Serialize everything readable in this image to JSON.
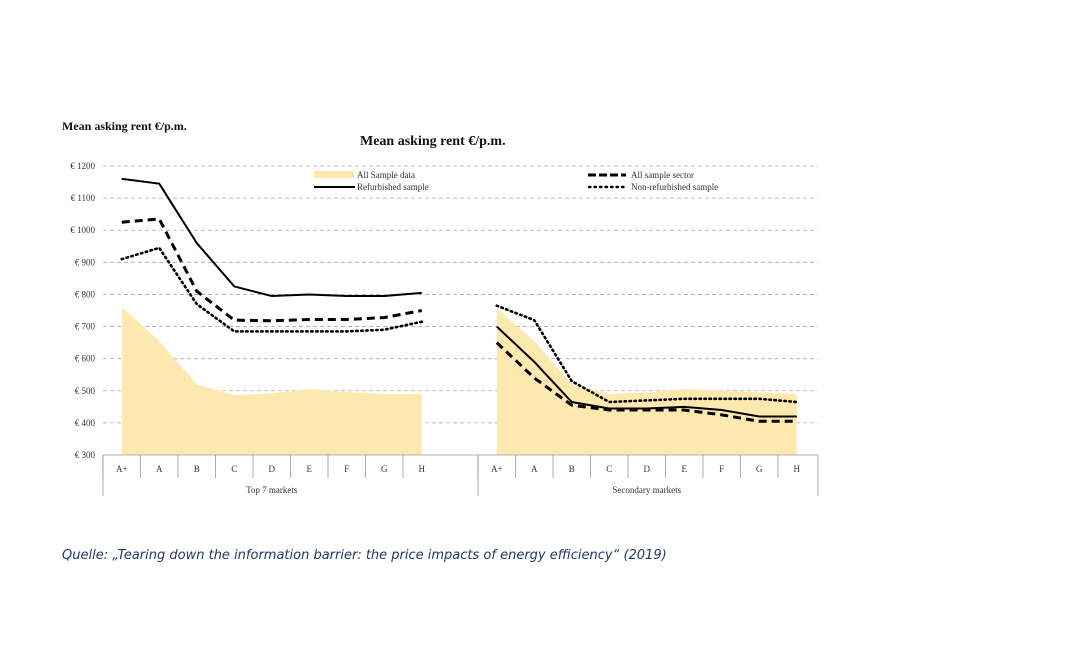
{
  "chart_data": {
    "type": "line",
    "title": "Mean asking rent €/p.m.",
    "ylabel": "Mean asking rent €/p.m.",
    "ylim": [
      300,
      1200
    ],
    "yticks": [
      "€ 300",
      "€ 400",
      "€ 500",
      "€ 600",
      "€ 700",
      "€ 800",
      "€ 900",
      "€ 1000",
      "€ 1100",
      "€ 1200"
    ],
    "grid": true,
    "legend_position": "top",
    "area_color": "#fde9b0",
    "categories": [
      "A+",
      "A",
      "B",
      "C",
      "D",
      "E",
      "F",
      "G",
      "H"
    ],
    "groups": [
      {
        "name": "Top 7 markets",
        "series": [
          {
            "name": "All Sample data",
            "style": "area",
            "values": [
              760,
              655,
              520,
              487,
              492,
              505,
              497,
              490,
              490
            ]
          },
          {
            "name": "Refurbished sample",
            "style": "solid",
            "values": [
              1160,
              1145,
              960,
              825,
              795,
              800,
              795,
              795,
              805
            ]
          },
          {
            "name": "All sample sector",
            "style": "dashed",
            "values": [
              1025,
              1035,
              810,
              720,
              718,
              722,
              722,
              728,
              750
            ]
          },
          {
            "name": "Non-refurbished sample",
            "style": "dotted",
            "values": [
              910,
              945,
              770,
              685,
              685,
              685,
              685,
              690,
              715
            ]
          }
        ]
      },
      {
        "name": "Secondary markets",
        "series": [
          {
            "name": "All Sample data",
            "style": "area",
            "values": [
              757,
              655,
              520,
              490,
              495,
              505,
              500,
              495,
              490
            ]
          },
          {
            "name": "Refurbished sample",
            "style": "solid",
            "values": [
              700,
              590,
              465,
              445,
              445,
              450,
              440,
              420,
              420
            ]
          },
          {
            "name": "All sample sector",
            "style": "dashed",
            "values": [
              650,
              540,
              455,
              440,
              440,
              440,
              425,
              405,
              405
            ]
          },
          {
            "name": "Non-refurbished sample",
            "style": "dotted",
            "values": [
              765,
              720,
              530,
              465,
              470,
              475,
              475,
              475,
              465
            ]
          }
        ]
      }
    ],
    "legend": [
      "All Sample data",
      "Refurbished sample",
      "All sample sector",
      "Non-refurbished sample"
    ]
  },
  "header_left": "Mean asking rent €/p.m.",
  "source": "Quelle: „Tearing down the information barrier: the price impacts of energy efficiency“ (2019)"
}
